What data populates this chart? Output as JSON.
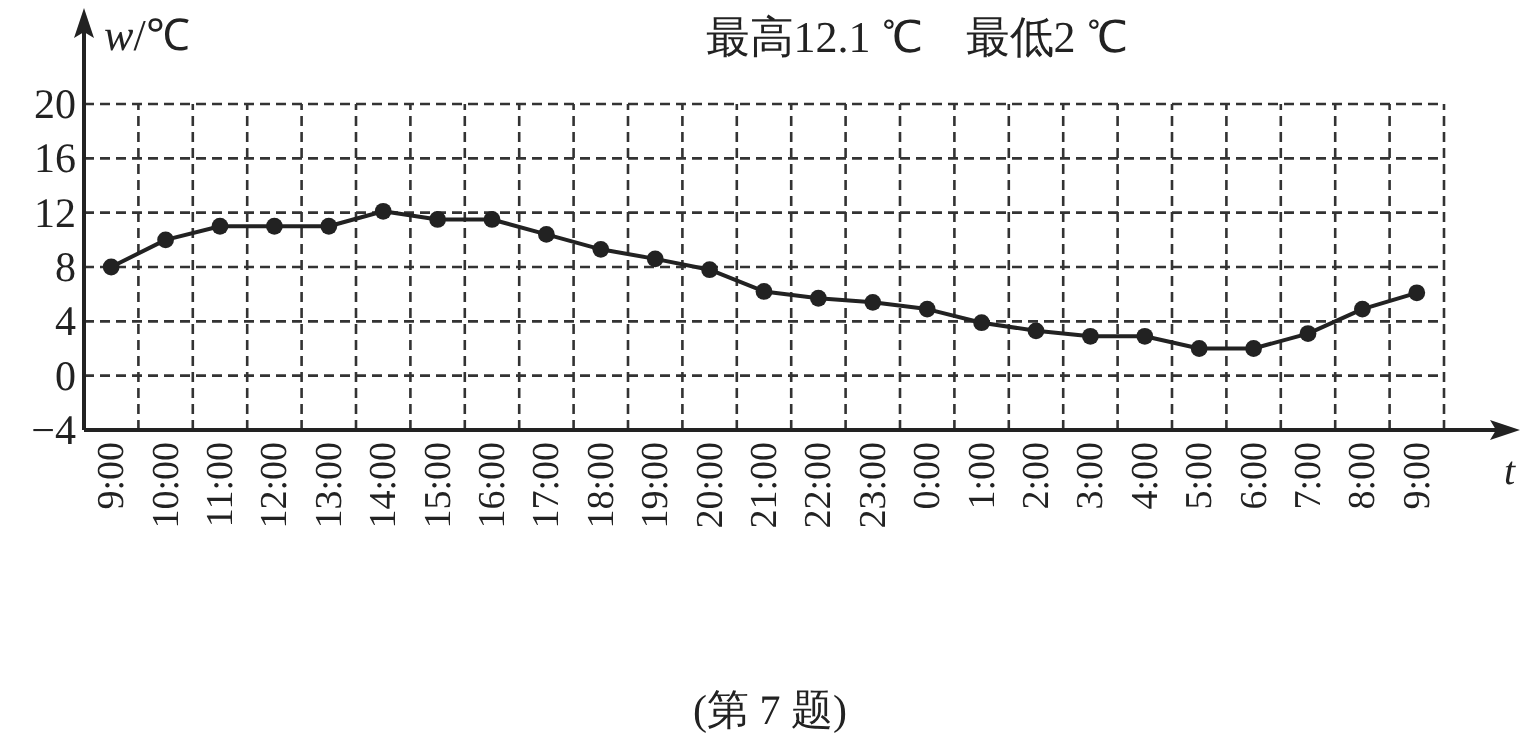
{
  "chart_data": {
    "type": "line",
    "title": "最高12.1 ℃　最低2 ℃",
    "ylabel": "*w*/℃",
    "xlabel": "t",
    "categories": [
      "9:00",
      "10:00",
      "11:00",
      "12:00",
      "13:00",
      "14:00",
      "15:00",
      "16:00",
      "17:00",
      "18:00",
      "19:00",
      "20:00",
      "21:00",
      "22:00",
      "23:00",
      "0:00",
      "1:00",
      "2:00",
      "3:00",
      "4:00",
      "5:00",
      "6:00",
      "7:00",
      "8:00",
      "9:00"
    ],
    "values": [
      8,
      10,
      11,
      11,
      11,
      12.1,
      11.5,
      11.5,
      10.4,
      9.3,
      8.6,
      7.8,
      6.2,
      5.7,
      5.4,
      4.9,
      3.9,
      3.3,
      2.9,
      2.9,
      2,
      2,
      3.1,
      4.9,
      6.1
    ],
    "color": "#222222",
    "marker": "circle",
    "line_style": "solid",
    "grid": true,
    "ylim": [
      -4,
      20
    ],
    "yticks": [
      -4,
      0,
      4,
      8,
      12,
      16,
      20
    ],
    "annotations": [
      "(第 7 题)"
    ]
  }
}
